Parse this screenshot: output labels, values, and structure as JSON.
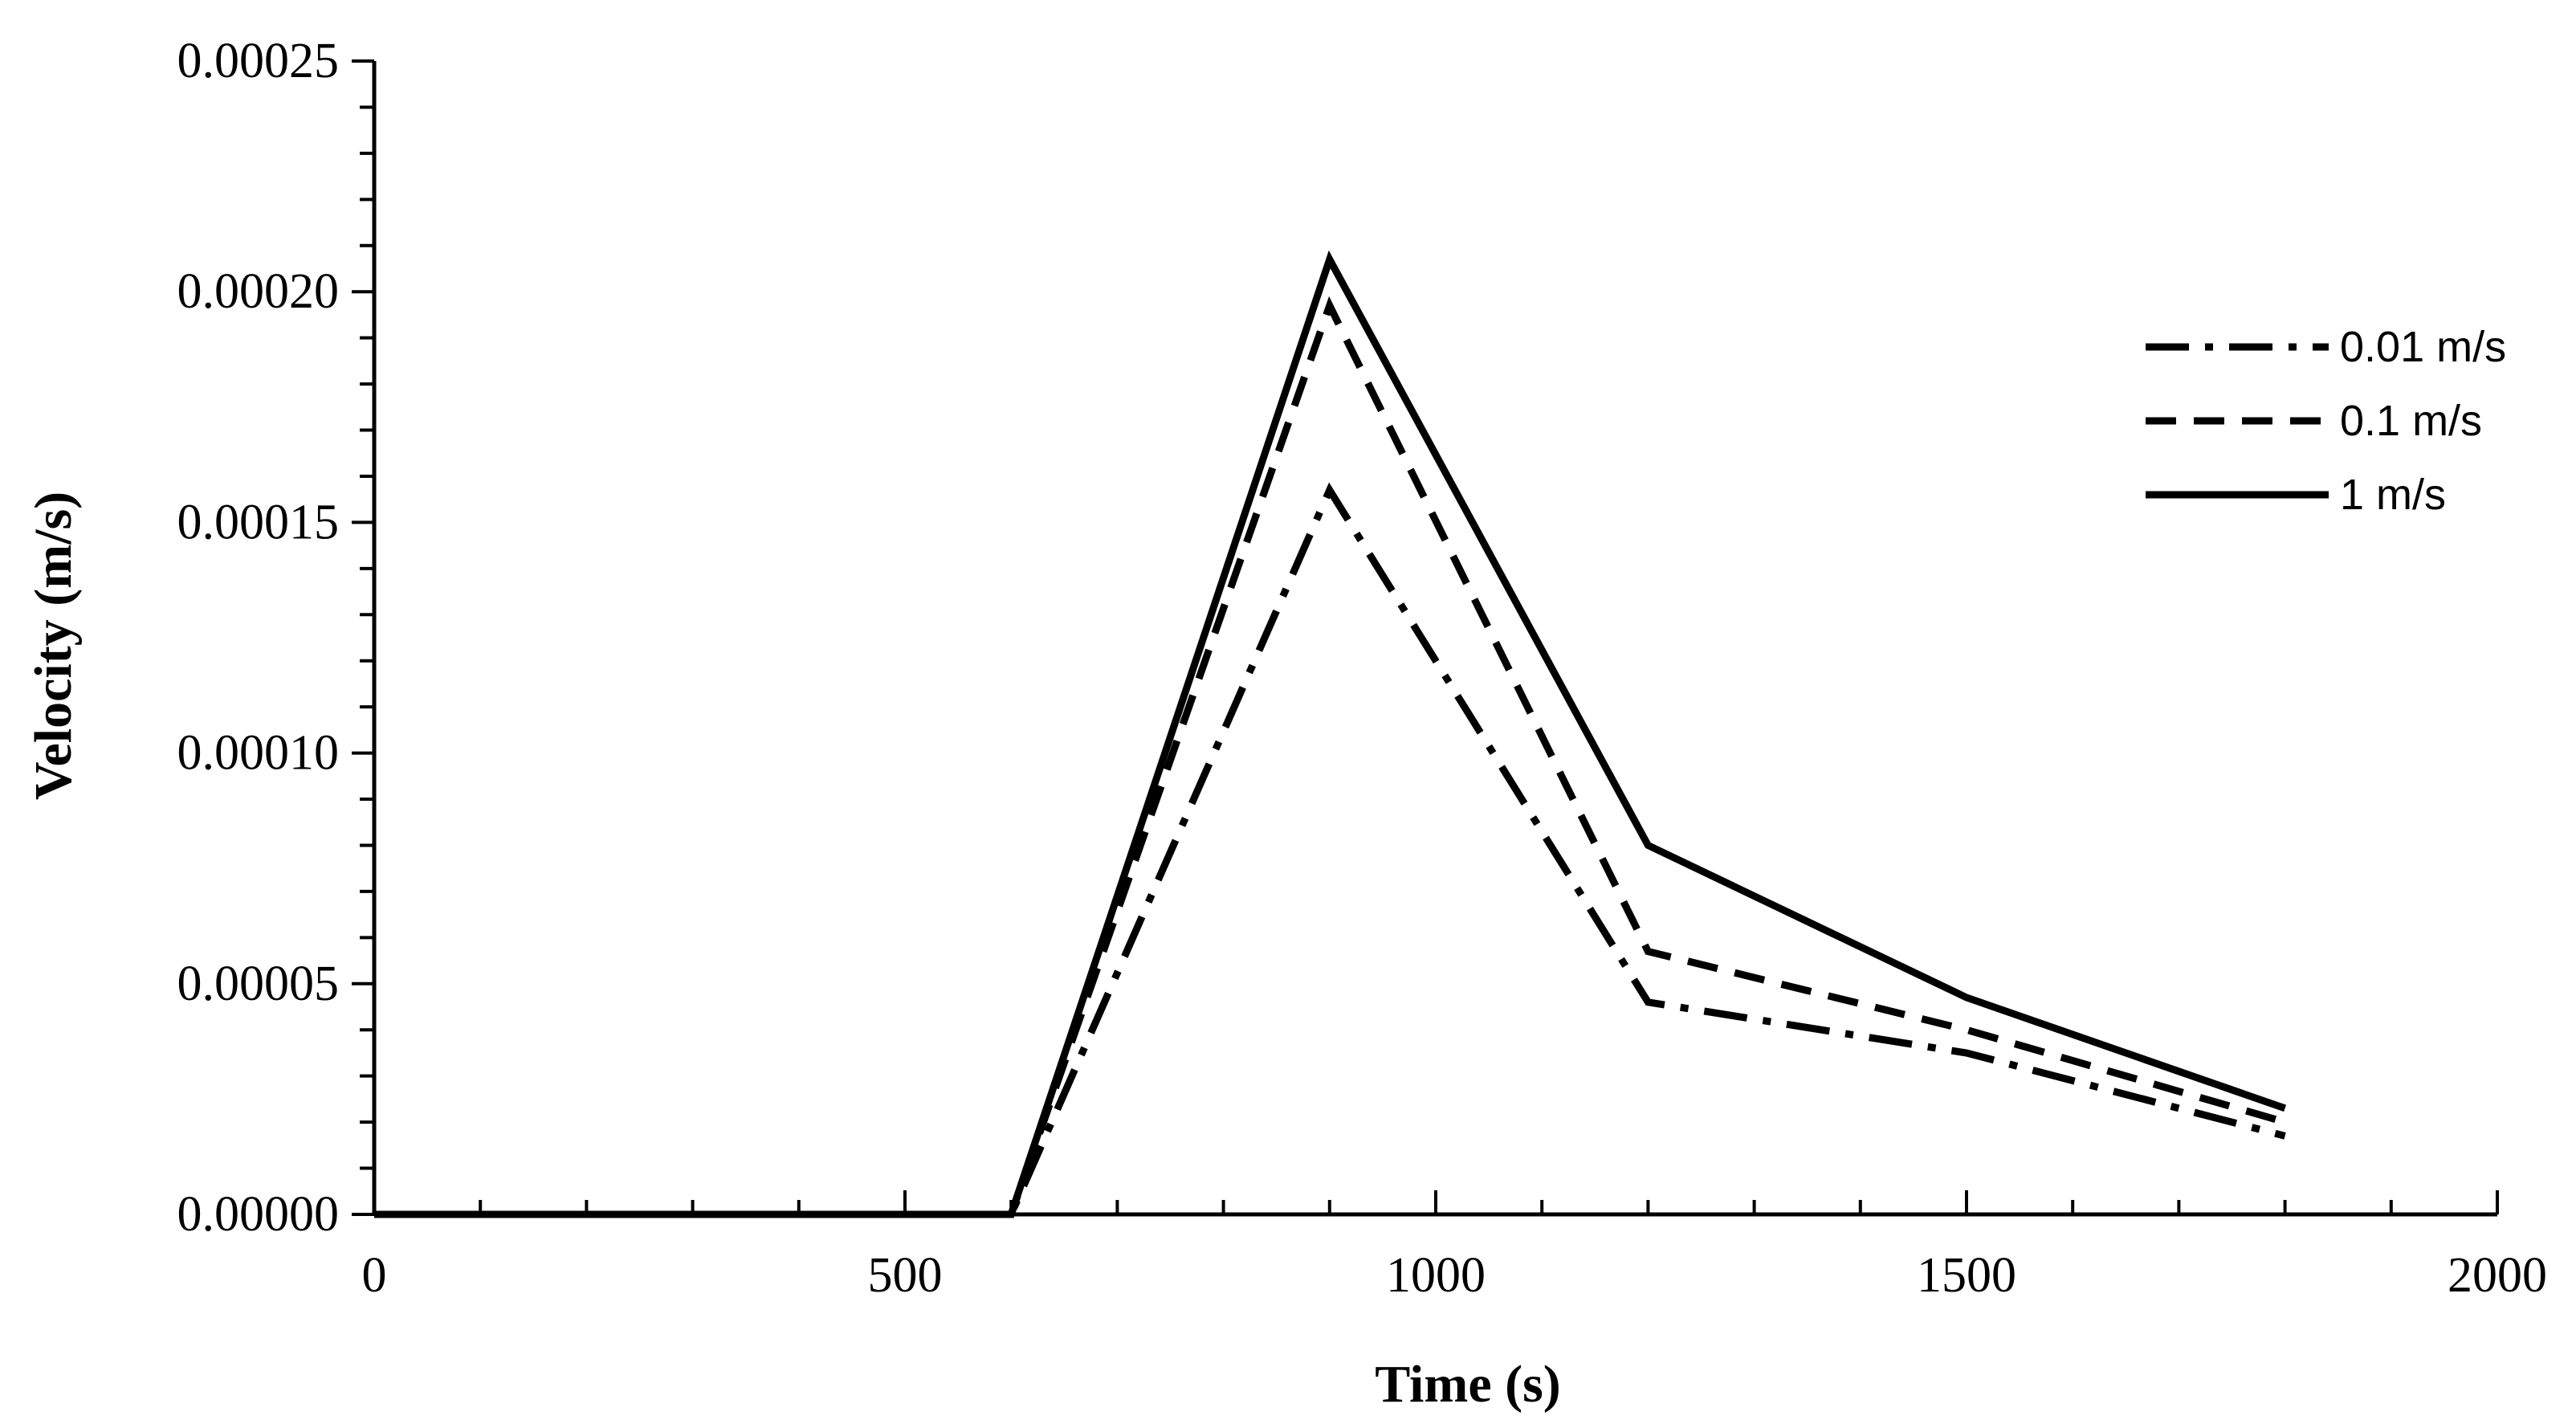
{
  "chart_data": {
    "type": "line",
    "title": "",
    "xlabel": "Time (s)",
    "ylabel": "Velocity (m/s)",
    "xlim": [
      0,
      2000
    ],
    "ylim": [
      0,
      0.00025
    ],
    "x_major_ticks": [
      0,
      500,
      1000,
      1500,
      2000
    ],
    "x_tick_labels": [
      "0",
      "500",
      "1000",
      "1500",
      "2000"
    ],
    "x_minor_step": 100,
    "y_major_ticks": [
      0,
      5e-05,
      0.0001,
      0.00015,
      0.0002,
      0.00025
    ],
    "y_tick_labels": [
      "0.00000",
      "0.00005",
      "0.00010",
      "0.00015",
      "0.00020",
      "0.00025"
    ],
    "y_minor_step": 1e-05,
    "grid": false,
    "legend_position": "right",
    "series": [
      {
        "name": "0.01 m/s",
        "style": "dash-dot",
        "x": [
          0,
          300,
          600,
          900,
          1200,
          1500,
          1800
        ],
        "values": [
          0,
          0,
          0,
          0.000157,
          4.6e-05,
          3.5e-05,
          1.7e-05
        ]
      },
      {
        "name": "0.1 m/s",
        "style": "dashed",
        "x": [
          0,
          300,
          600,
          900,
          1200,
          1500,
          1800
        ],
        "values": [
          0,
          0,
          0,
          0.000197,
          5.7e-05,
          4e-05,
          2e-05
        ]
      },
      {
        "name": "1 m/s",
        "style": "solid",
        "x": [
          0,
          300,
          600,
          900,
          1200,
          1500,
          1800
        ],
        "values": [
          0,
          0,
          0,
          0.000207,
          8e-05,
          4.7e-05,
          2.3e-05
        ]
      }
    ]
  }
}
